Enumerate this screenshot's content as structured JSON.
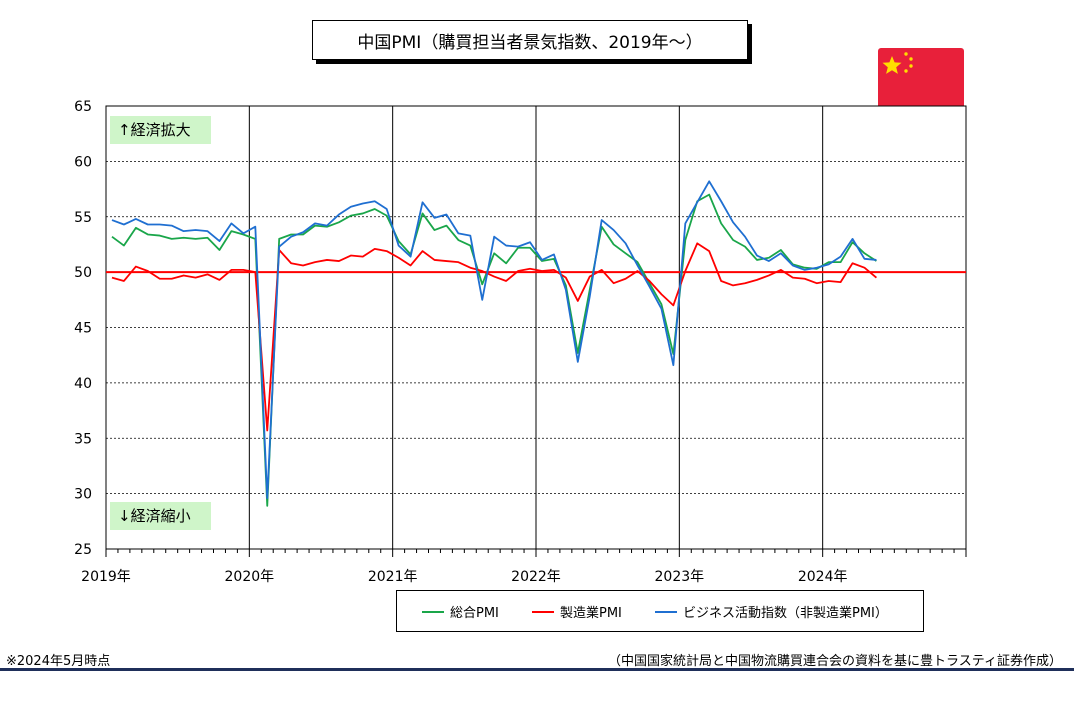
{
  "title": "中国PMI（購買担当者景気指数、2019年～）",
  "note_left": "※2024年5月時点",
  "source": "（中国国家統計局と中国物流購買連合会の資料を基に豊トラスティ証券作成）",
  "flag": {
    "icon": "china-flag-icon",
    "color": "#e8203a",
    "star_color": "#ffde00"
  },
  "chart_data": {
    "type": "line",
    "ylim": [
      25,
      65
    ],
    "yticks": [
      "25",
      "30",
      "35",
      "40",
      "45",
      "50",
      "55",
      "60",
      "65"
    ],
    "x_start": "2019-01",
    "x_end": "2024-12",
    "xticks": [
      "2019年",
      "2020年",
      "2021年",
      "2022年",
      "2023年",
      "2024年"
    ],
    "grid": true,
    "reference_line": {
      "value": 50,
      "color": "#ff0000"
    },
    "annotations": {
      "up": "↑経済拡大",
      "down": "↓経済縮小"
    },
    "legend": {
      "placement": "bottom"
    },
    "series": [
      {
        "name": "総合PMI",
        "color": "#1aa64a",
        "values": [
          53.2,
          52.4,
          54.0,
          53.4,
          53.3,
          53.0,
          53.1,
          53.0,
          53.1,
          52.0,
          53.7,
          53.4,
          53.0,
          28.9,
          53.0,
          53.4,
          53.4,
          54.2,
          54.1,
          54.5,
          55.1,
          55.3,
          55.7,
          55.1,
          52.8,
          51.6,
          55.3,
          53.8,
          54.2,
          52.9,
          52.4,
          48.9,
          51.7,
          50.8,
          52.2,
          52.2,
          51.0,
          51.2,
          48.8,
          42.7,
          48.4,
          54.1,
          52.5,
          51.7,
          50.9,
          49.0,
          47.1,
          42.6,
          52.9,
          56.4,
          57.0,
          54.4,
          52.9,
          52.3,
          51.1,
          51.3,
          52.0,
          50.7,
          50.4,
          50.3,
          50.9,
          50.9,
          52.7,
          51.7,
          51.0
        ]
      },
      {
        "name": "製造業PMI",
        "color": "#ff0000",
        "values": [
          49.5,
          49.2,
          50.5,
          50.1,
          49.4,
          49.4,
          49.7,
          49.5,
          49.8,
          49.3,
          50.2,
          50.2,
          50.0,
          35.7,
          52.0,
          50.8,
          50.6,
          50.9,
          51.1,
          51.0,
          51.5,
          51.4,
          52.1,
          51.9,
          51.3,
          50.6,
          51.9,
          51.1,
          51.0,
          50.9,
          50.4,
          50.1,
          49.6,
          49.2,
          50.1,
          50.3,
          50.1,
          50.2,
          49.5,
          47.4,
          49.6,
          50.2,
          49.0,
          49.4,
          50.1,
          49.2,
          48.0,
          47.0,
          50.1,
          52.6,
          51.9,
          49.2,
          48.8,
          49.0,
          49.3,
          49.7,
          50.2,
          49.5,
          49.4,
          49.0,
          49.2,
          49.1,
          50.8,
          50.4,
          49.5
        ]
      },
      {
        "name": "ビジネス活動指数（非製造業PMI）",
        "color": "#1f6fd1",
        "values": [
          54.7,
          54.3,
          54.8,
          54.3,
          54.3,
          54.2,
          53.7,
          53.8,
          53.7,
          52.8,
          54.4,
          53.5,
          54.1,
          29.6,
          52.3,
          53.2,
          53.6,
          54.4,
          54.2,
          55.2,
          55.9,
          56.2,
          56.4,
          55.7,
          52.4,
          51.4,
          56.3,
          54.9,
          55.2,
          53.5,
          53.3,
          47.5,
          53.2,
          52.4,
          52.3,
          52.7,
          51.1,
          51.6,
          48.4,
          41.9,
          47.8,
          54.7,
          53.8,
          52.6,
          50.6,
          48.7,
          46.7,
          41.6,
          54.4,
          56.3,
          58.2,
          56.4,
          54.5,
          53.2,
          51.5,
          51.0,
          51.7,
          50.6,
          50.2,
          50.4,
          50.7,
          51.4,
          53.0,
          51.2,
          51.1
        ]
      }
    ]
  }
}
